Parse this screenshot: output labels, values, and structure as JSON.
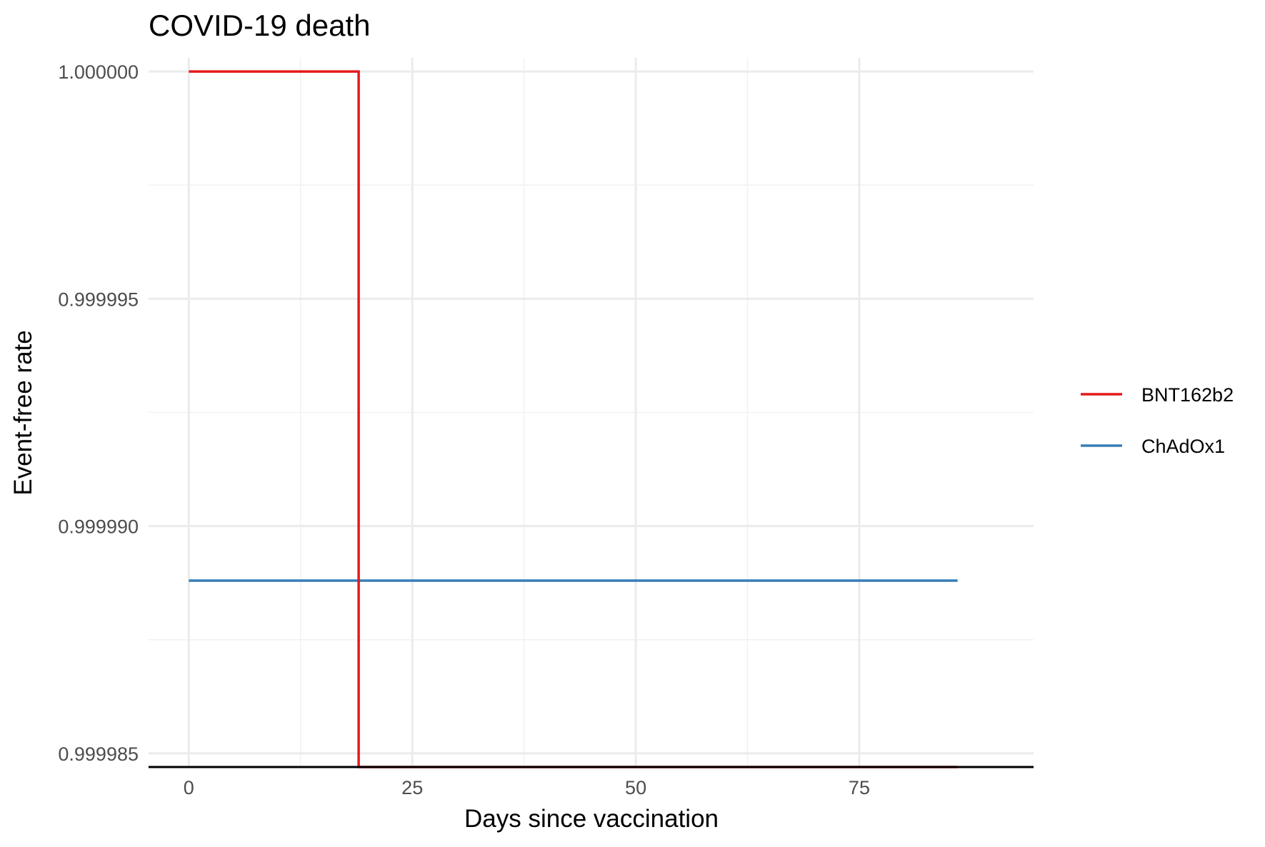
{
  "chart_data": {
    "type": "line",
    "step": true,
    "title": "COVID-19 death",
    "xlabel": "Days since vaccination",
    "ylabel": "Event-free rate",
    "xlim": [
      -4.5,
      94.5
    ],
    "ylim": [
      0.9999847,
      1.0000003
    ],
    "x_ticks": [
      0,
      25,
      50,
      75
    ],
    "x_tick_labels": [
      "0",
      "25",
      "50",
      "75"
    ],
    "y_ticks": [
      0.999985,
      0.99999,
      0.999995,
      1.0
    ],
    "y_tick_labels": [
      "0.999985",
      "0.999990",
      "0.999995",
      "1.000000"
    ],
    "grid": true,
    "legend_position": "right",
    "series": [
      {
        "name": "BNT162b2",
        "color": "#e41a1c",
        "x": [
          0,
          19,
          19,
          86
        ],
        "y": [
          1.0,
          1.0,
          0.9999847,
          0.9999847
        ]
      },
      {
        "name": "ChAdOx1",
        "color": "#377eb8",
        "x": [
          0,
          86
        ],
        "y": [
          0.9999888,
          0.9999888
        ]
      }
    ]
  }
}
